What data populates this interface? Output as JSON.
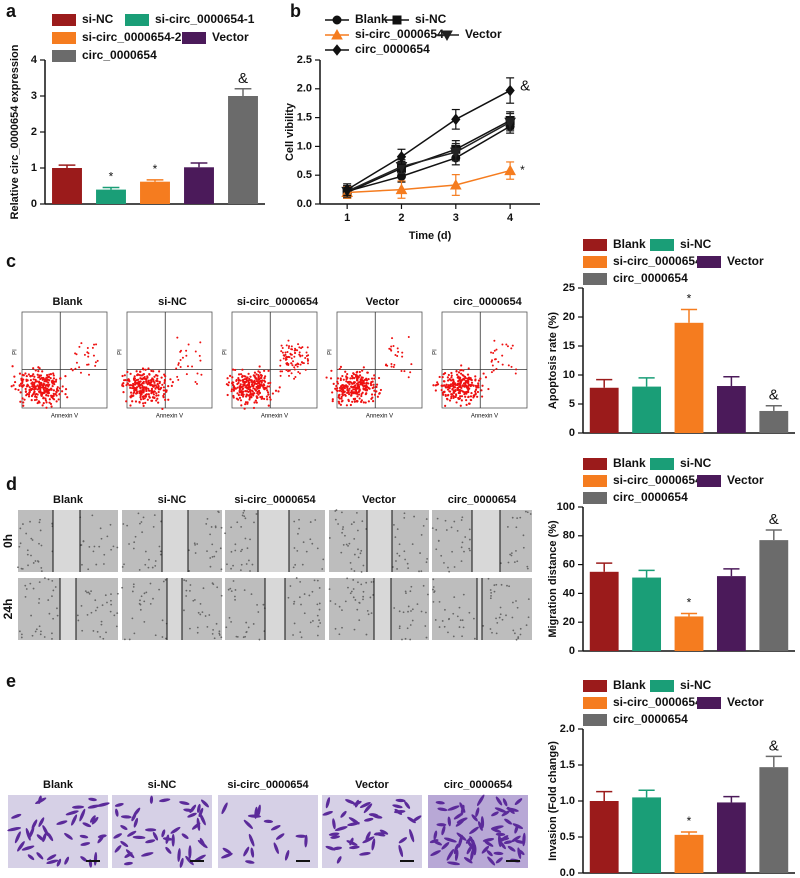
{
  "panels": [
    "a",
    "b",
    "c",
    "d",
    "e"
  ],
  "chart_data": [
    {
      "type": "bar",
      "ylabel": "Relative circ_0000654 expression",
      "categories": [
        null
      ],
      "ylim": [
        0,
        4
      ],
      "yticks": [
        0,
        1,
        2,
        3,
        4
      ],
      "series": [
        {
          "name": "si-NC",
          "color": "#9b1b1b",
          "values": [
            1.0
          ],
          "errors": [
            0.08
          ]
        },
        {
          "name": "si-circ_0000654-1",
          "color": "#1a9e77",
          "values": [
            0.4
          ],
          "errors": [
            0.06
          ],
          "annotation": "*"
        },
        {
          "name": "si-circ_0000654-2",
          "color": "#f57c1f",
          "values": [
            0.62
          ],
          "errors": [
            0.05
          ],
          "annotation": "*"
        },
        {
          "name": "Vector",
          "color": "#4b1a5a",
          "values": [
            1.02
          ],
          "errors": [
            0.12
          ]
        },
        {
          "name": "circ_0000654",
          "color": "#6b6b6b",
          "values": [
            3.0
          ],
          "errors": [
            0.2
          ],
          "annotation": "&"
        }
      ]
    },
    {
      "type": "line",
      "xlabel": "Time (d)",
      "ylabel": "Cell vibility",
      "x": [
        1,
        2,
        3,
        4
      ],
      "xlim": [
        0.5,
        4.55
      ],
      "xticks": [
        1,
        2,
        3,
        4
      ],
      "ylim": [
        0,
        2.5
      ],
      "yticks": [
        {
          "value": 0,
          "label": "0.0"
        },
        0.5,
        {
          "value": 1,
          "label": "1.0"
        },
        1.5,
        {
          "value": 2,
          "label": "2.0"
        },
        2.5
      ],
      "series": [
        {
          "name": "Blank",
          "color": "#111111",
          "marker": "circle",
          "values": [
            0.22,
            0.48,
            0.8,
            1.35
          ],
          "errors": [
            0.1,
            0.1,
            0.12,
            0.12
          ]
        },
        {
          "name": "si-NC",
          "color": "#111111",
          "marker": "square",
          "values": [
            0.2,
            0.62,
            0.95,
            1.45
          ],
          "errors": [
            0.1,
            0.12,
            0.15,
            0.15
          ]
        },
        {
          "name": "si-circ_0000654",
          "color": "#f57c1f",
          "marker": "triangle",
          "values": [
            0.2,
            0.25,
            0.33,
            0.58
          ],
          "errors": [
            0.1,
            0.15,
            0.18,
            0.15
          ],
          "annotation": "*"
        },
        {
          "name": "Vector",
          "color": "#222222",
          "marker": "down-triangle",
          "values": [
            0.22,
            0.65,
            0.9,
            1.42
          ],
          "errors": [
            0.1,
            0.12,
            0.15,
            0.15
          ]
        },
        {
          "name": "circ_0000654",
          "color": "#111111",
          "marker": "diamond",
          "values": [
            0.25,
            0.82,
            1.47,
            1.97
          ],
          "errors": [
            0.1,
            0.13,
            0.17,
            0.22
          ],
          "annotation": "&"
        }
      ]
    },
    {
      "type": "bar",
      "ylabel": "Apoptosis rate (%)",
      "categories": [
        null
      ],
      "ylim": [
        0,
        25
      ],
      "yticks": [
        0,
        5,
        10,
        15,
        20,
        25
      ],
      "series": [
        {
          "name": "Blank",
          "color": "#9b1b1b",
          "values": [
            7.8
          ],
          "errors": [
            1.4
          ]
        },
        {
          "name": "si-NC",
          "color": "#1a9e77",
          "values": [
            8.0
          ],
          "errors": [
            1.5
          ]
        },
        {
          "name": "si-circ_0000654",
          "color": "#f57c1f",
          "values": [
            19.0
          ],
          "errors": [
            2.3
          ],
          "annotation": "*"
        },
        {
          "name": "Vector",
          "color": "#4b1a5a",
          "values": [
            8.1
          ],
          "errors": [
            1.6
          ]
        },
        {
          "name": "circ_0000654",
          "color": "#6b6b6b",
          "values": [
            3.8
          ],
          "errors": [
            0.9
          ],
          "annotation": "&"
        }
      ]
    },
    {
      "type": "bar",
      "ylabel": "Migration distance (%)",
      "categories": [
        null
      ],
      "ylim": [
        0,
        100
      ],
      "yticks": [
        0,
        20,
        40,
        60,
        80,
        100
      ],
      "series": [
        {
          "name": "Blank",
          "color": "#9b1b1b",
          "values": [
            55
          ],
          "errors": [
            6
          ]
        },
        {
          "name": "si-NC",
          "color": "#1a9e77",
          "values": [
            51
          ],
          "errors": [
            5
          ]
        },
        {
          "name": "si-circ_0000654",
          "color": "#f57c1f",
          "values": [
            24
          ],
          "errors": [
            2
          ],
          "annotation": "*"
        },
        {
          "name": "Vector",
          "color": "#4b1a5a",
          "values": [
            52
          ],
          "errors": [
            5
          ]
        },
        {
          "name": "circ_0000654",
          "color": "#6b6b6b",
          "values": [
            77
          ],
          "errors": [
            7
          ],
          "annotation": "&"
        }
      ]
    },
    {
      "type": "bar",
      "ylabel": "Invasion (Fold change)",
      "categories": [
        null
      ],
      "ylim": [
        0,
        2
      ],
      "yticks": [
        {
          "value": 0,
          "label": "0.0"
        },
        0.5,
        {
          "value": 1,
          "label": "1.0"
        },
        1.5,
        {
          "value": 2,
          "label": "2.0"
        }
      ],
      "series": [
        {
          "name": "Blank",
          "color": "#9b1b1b",
          "values": [
            1.0
          ],
          "errors": [
            0.13
          ]
        },
        {
          "name": "si-NC",
          "color": "#1a9e77",
          "values": [
            1.05
          ],
          "errors": [
            0.1
          ]
        },
        {
          "name": "si-circ_0000654",
          "color": "#f57c1f",
          "values": [
            0.53
          ],
          "errors": [
            0.04
          ],
          "annotation": "*"
        },
        {
          "name": "Vector",
          "color": "#4b1a5a",
          "values": [
            0.98
          ],
          "errors": [
            0.08
          ]
        },
        {
          "name": "circ_0000654",
          "color": "#6b6b6b",
          "values": [
            1.47
          ],
          "errors": [
            0.15
          ],
          "annotation": "&"
        }
      ]
    }
  ],
  "images": {
    "c": {
      "titles": [
        "Blank",
        "si-NC",
        "si-circ_0000654",
        "Vector",
        "circ_0000654"
      ],
      "ylabel": "PI",
      "xlabel": "Annexin V"
    },
    "d": {
      "titles": [
        "Blank",
        "si-NC",
        "si-circ_0000654",
        "Vector",
        "circ_0000654"
      ],
      "rows": [
        "0h",
        "24h"
      ]
    },
    "e": {
      "titles": [
        "Blank",
        "si-NC",
        "si-circ_0000654",
        "Vector",
        "circ_0000654"
      ]
    }
  }
}
